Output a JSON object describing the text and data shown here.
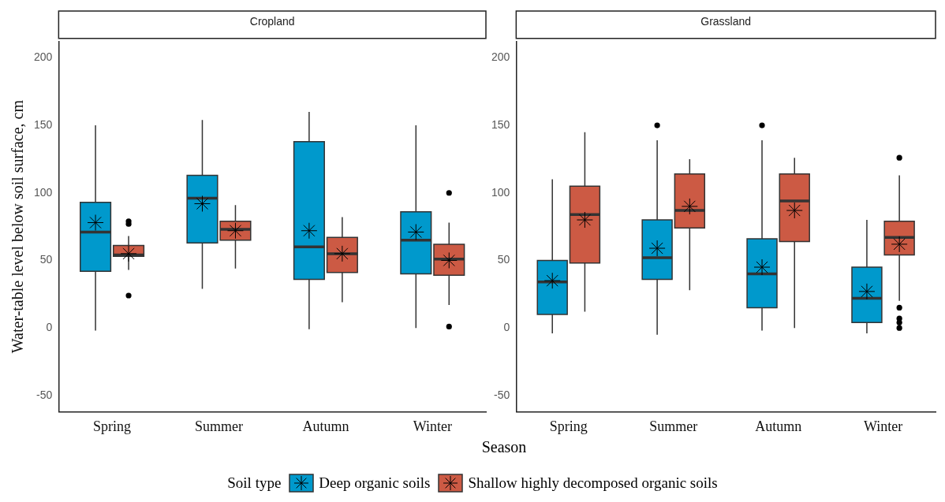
{
  "chart_data": [
    {
      "type": "box",
      "title": "Cropland",
      "xlabel": "Season",
      "ylabel": "Water-table level below soil surface, cm",
      "legend_title": "Soil type",
      "legend": "bottom",
      "marker": "star",
      "grid": false,
      "categories": [
        "Spring",
        "Summer",
        "Autumn",
        "Winter"
      ],
      "ylim": [
        -62,
        212
      ],
      "yticks": [
        -50,
        0,
        50,
        100,
        150,
        200
      ],
      "series": [
        {
          "name": "Deep organic soils",
          "color": "#0099cc",
          "boxes": [
            {
              "low": -2,
              "q1": 42,
              "median": 71,
              "q3": 93,
              "high": 150,
              "mean": 78
            },
            {
              "low": 29,
              "q1": 63,
              "median": 96,
              "q3": 113,
              "high": 154,
              "mean": 92
            },
            {
              "low": -1,
              "q1": 36,
              "median": 60,
              "q3": 138,
              "high": 160,
              "mean": 72
            },
            {
              "low": 0,
              "q1": 40,
              "median": 65,
              "q3": 86,
              "high": 150,
              "mean": 71
            }
          ]
        },
        {
          "name": "Shallow highly decomposed organic soils",
          "color": "#cc5a44",
          "boxes": [
            {
              "low": 43,
              "q1": 53,
              "median": 54,
              "q3": 61,
              "high": 68,
              "mean": 55,
              "outliers": [
                79,
                77,
                24
              ]
            },
            {
              "low": 44,
              "q1": 65,
              "median": 73,
              "q3": 79,
              "high": 91,
              "mean": 72
            },
            {
              "low": 19,
              "q1": 41,
              "median": 55,
              "q3": 67,
              "high": 82,
              "mean": 55
            },
            {
              "low": 17,
              "q1": 39,
              "median": 51,
              "q3": 62,
              "high": 78,
              "mean": 50,
              "outliers": [
                100,
                1
              ]
            }
          ]
        }
      ]
    },
    {
      "type": "box",
      "title": "Grassland",
      "marker": "star",
      "grid": false,
      "categories": [
        "Spring",
        "Summer",
        "Autumn",
        "Winter"
      ],
      "ylim": [
        -62,
        212
      ],
      "yticks": [
        -50,
        0,
        50,
        100,
        150,
        200
      ],
      "series": [
        {
          "color": "#0099cc",
          "boxes": [
            {
              "low": -4,
              "q1": 10,
              "median": 34,
              "q3": 50,
              "high": 110,
              "mean": 35
            },
            {
              "low": -5,
              "q1": 36,
              "median": 52,
              "q3": 80,
              "high": 139,
              "mean": 59,
              "outliers": [
                150
              ]
            },
            {
              "low": -2,
              "q1": 15,
              "median": 40,
              "q3": 66,
              "high": 139,
              "mean": 45,
              "outliers": [
                150
              ]
            },
            {
              "low": -4,
              "q1": 4,
              "median": 22,
              "q3": 45,
              "high": 80,
              "mean": 27
            }
          ]
        },
        {
          "color": "#cc5a44",
          "boxes": [
            {
              "low": 12,
              "q1": 48,
              "median": 84,
              "q3": 105,
              "high": 145,
              "mean": 80
            },
            {
              "low": 28,
              "q1": 74,
              "median": 87,
              "q3": 114,
              "high": 125,
              "mean": 90
            },
            {
              "low": 0,
              "q1": 64,
              "median": 94,
              "q3": 114,
              "high": 126,
              "mean": 87
            },
            {
              "low": 20,
              "q1": 54,
              "median": 67,
              "q3": 79,
              "high": 113,
              "mean": 62,
              "outliers": [
                126,
                15,
                7,
                4,
                0
              ]
            }
          ]
        }
      ]
    }
  ]
}
